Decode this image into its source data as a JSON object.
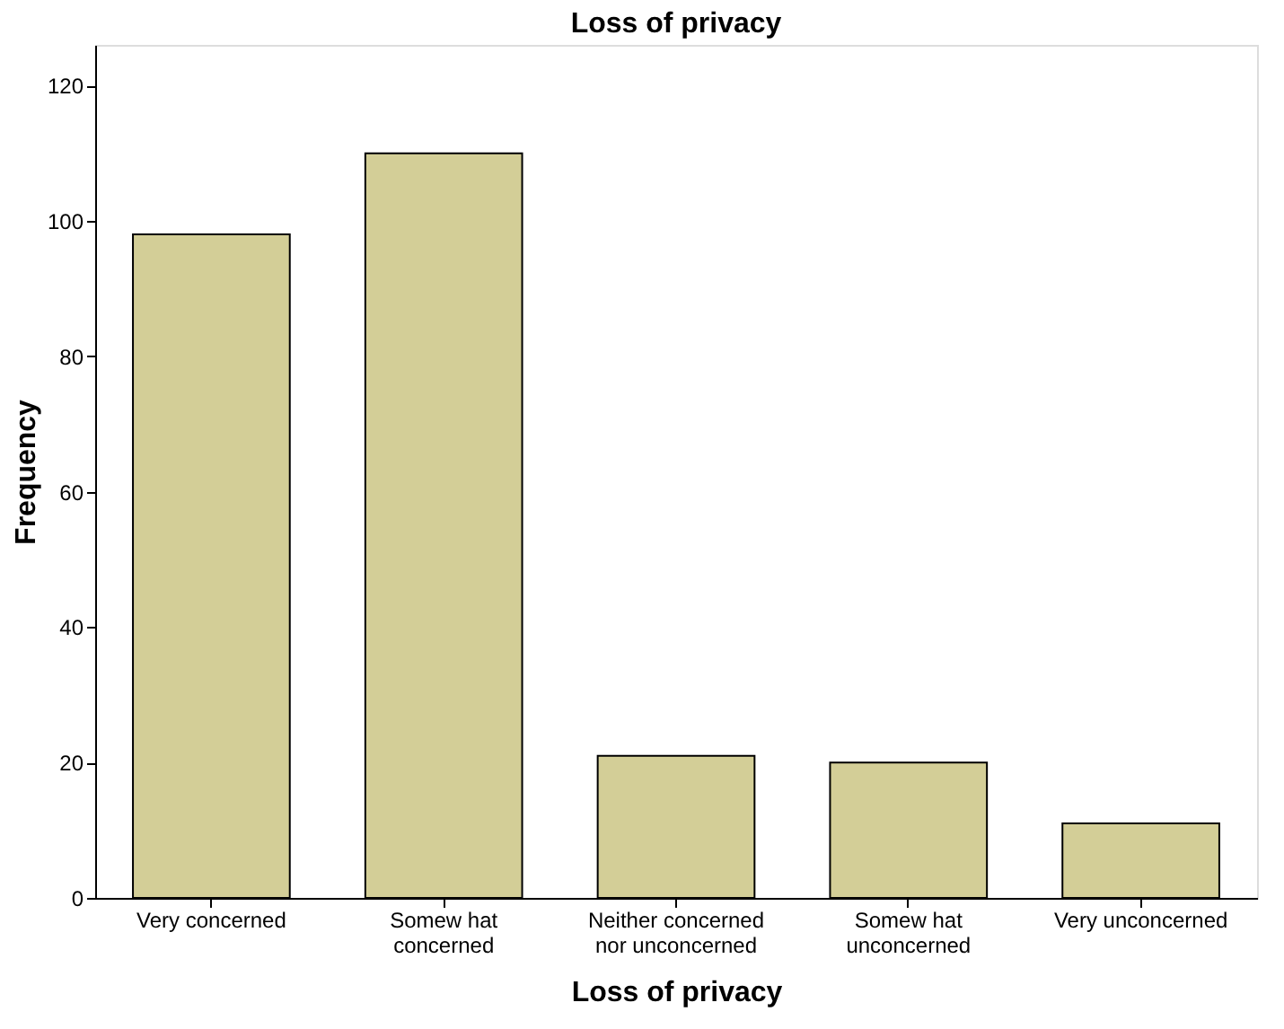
{
  "chart_data": {
    "type": "bar",
    "title": "Loss of privacy",
    "xlabel": "Loss of privacy",
    "ylabel": "Frequency",
    "categories": [
      "Very concerned",
      "Somew hat\nconcerned",
      "Neither concerned\nnor unconcerned",
      "Somew hat\nunconcerned",
      "Very unconcerned"
    ],
    "values": [
      98,
      110,
      21,
      20,
      11
    ],
    "color": "#d3ce97",
    "ylim": [
      0,
      126
    ],
    "yticks": [
      0,
      20,
      40,
      60,
      80,
      100,
      120
    ],
    "grid": false
  }
}
